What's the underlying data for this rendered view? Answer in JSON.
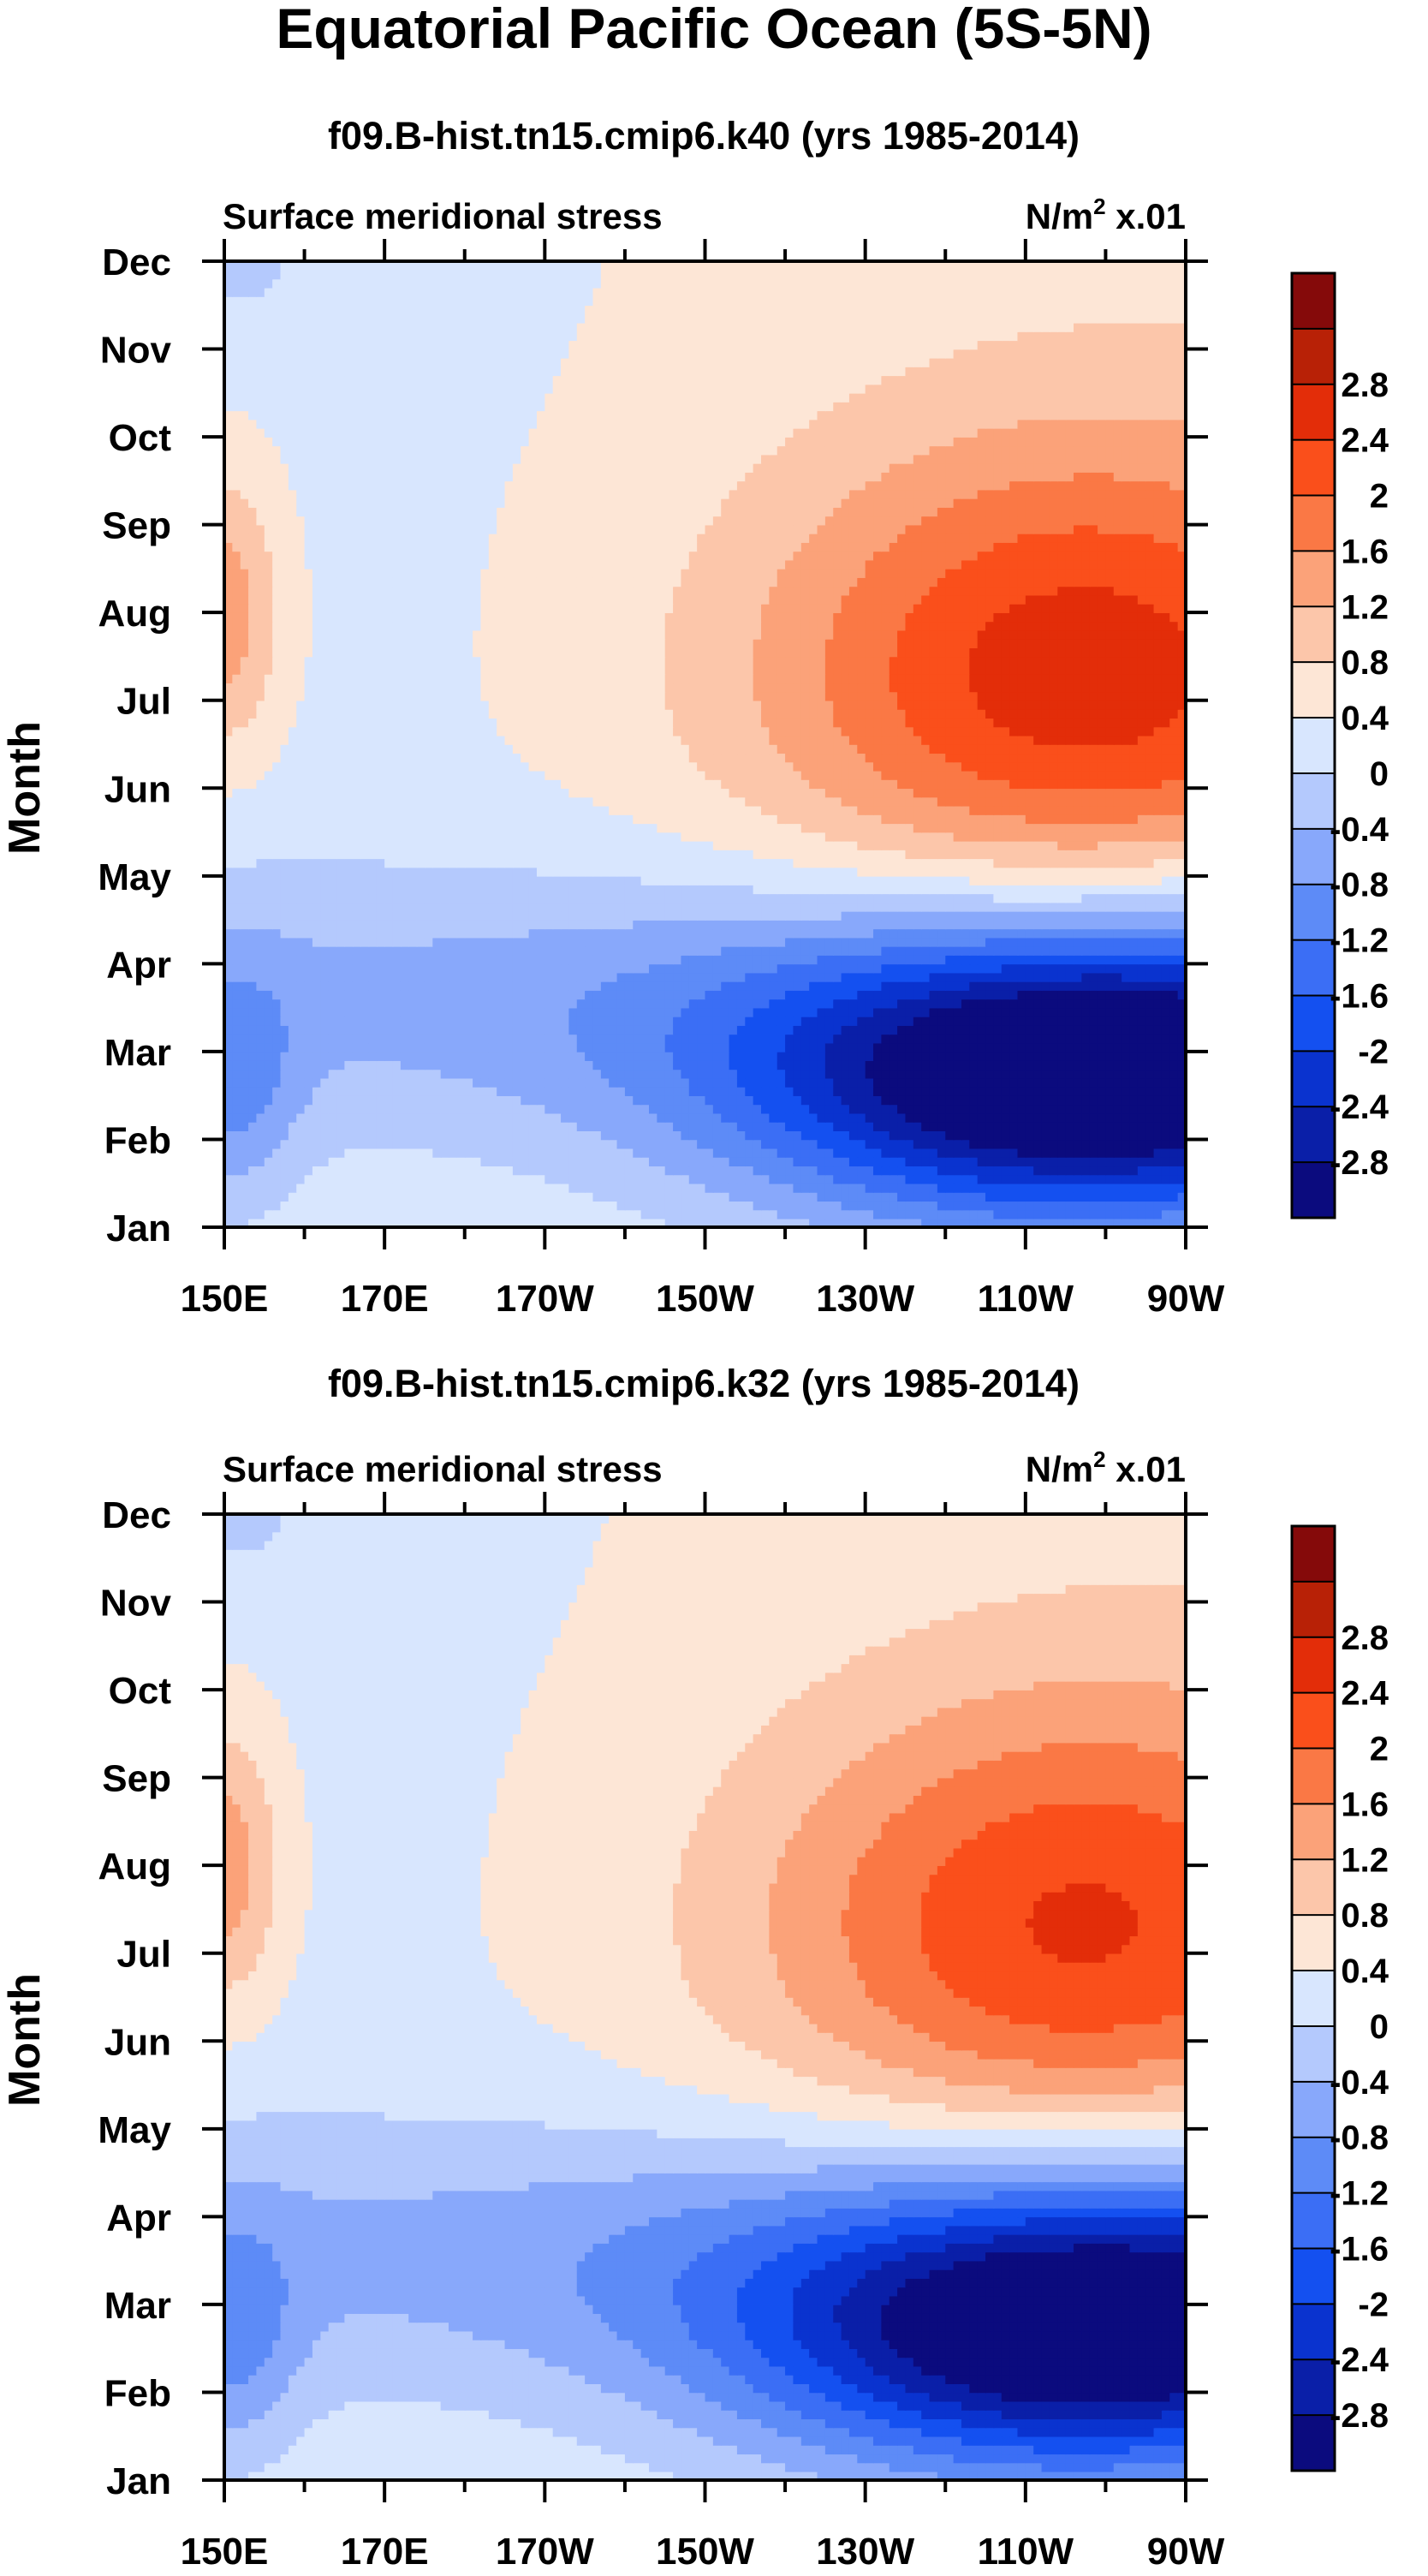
{
  "chart_data": {
    "title": "Equatorial Pacific Ocean (5S-5N)",
    "colorbar": {
      "levels": [
        "-2.8",
        "-2.4",
        "-2",
        "-1.6",
        "-1.2",
        "-0.8",
        "-0.4",
        "0",
        "0.4",
        "0.8",
        "1.2",
        "1.6",
        "2",
        "2.4",
        "2.8"
      ],
      "colors": [
        "#0b0b7e",
        "#0a1fa8",
        "#0a33cf",
        "#1450f0",
        "#3b6ef5",
        "#5d8bf7",
        "#88a8fb",
        "#b4c9fd",
        "#d8e6fe",
        "#fde6d6",
        "#fcc6aa",
        "#fba279",
        "#fa7845",
        "#fa4f1b",
        "#e32d09",
        "#b82106",
        "#850a0a"
      ]
    },
    "panels": [
      {
        "type": "heatmap",
        "subtitle": "f09.B-hist.tn15.cmip6.k40 (yrs 1985-2014)",
        "left_label": "Surface meridional stress",
        "right_label_base": "N/m",
        "right_label_sup": "2",
        "right_label_suffix": " x.01",
        "ylabel": "Month",
        "y_ticks": [
          "Jan",
          "Feb",
          "Mar",
          "Apr",
          "May",
          "Jun",
          "Jul",
          "Aug",
          "Sep",
          "Oct",
          "Nov",
          "Dec"
        ],
        "x_ticks": [
          "150E",
          "170E",
          "170W",
          "150W",
          "130W",
          "110W",
          "90W"
        ],
        "x_range_deg_east": [
          150,
          270
        ],
        "y_range_month": [
          1,
          12
        ]
      },
      {
        "type": "heatmap",
        "subtitle": "f09.B-hist.tn15.cmip6.k32 (yrs 1985-2014)",
        "left_label": "Surface meridional stress",
        "right_label_base": "N/m",
        "right_label_sup": "2",
        "right_label_suffix": " x.01",
        "ylabel": "Month",
        "y_ticks": [
          "Jan",
          "Feb",
          "Mar",
          "Apr",
          "May",
          "Jun",
          "Jul",
          "Aug",
          "Sep",
          "Oct",
          "Nov",
          "Dec"
        ],
        "x_ticks": [
          "150E",
          "170E",
          "170W",
          "150W",
          "130W",
          "110W",
          "90W"
        ],
        "x_range_deg_east": [
          150,
          270
        ],
        "y_range_month": [
          1,
          12
        ]
      }
    ]
  }
}
